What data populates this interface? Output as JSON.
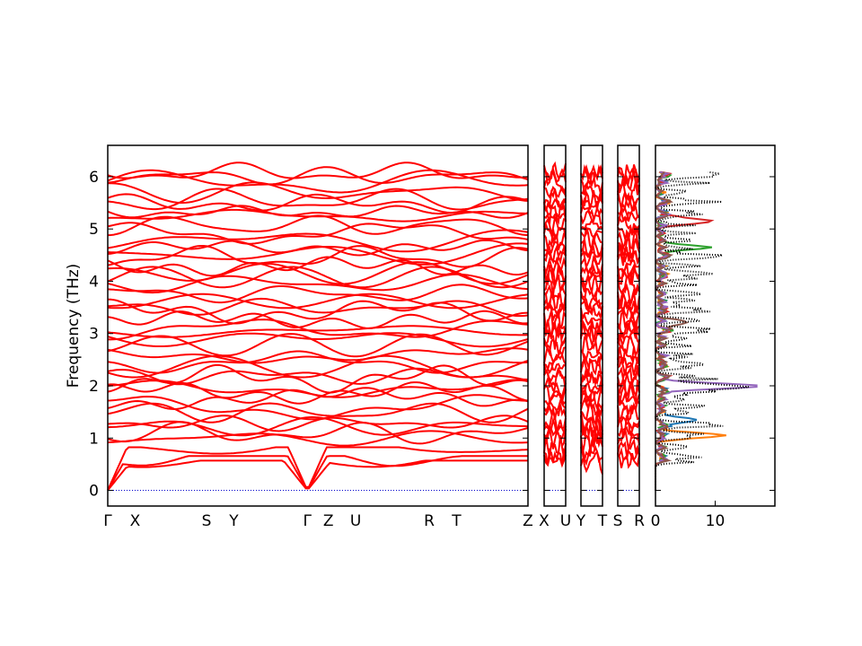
{
  "chart_data": {
    "type": "line",
    "ylabel": "Frequency (THz)",
    "ylim": [
      -0.3,
      6.6
    ],
    "yticks": [
      0,
      1,
      2,
      3,
      4,
      5,
      6
    ],
    "band_segments": [
      {
        "labels": [
          "Γ",
          "X",
          "S",
          "Y",
          "Γ",
          "Z",
          "U",
          "R",
          "T",
          "Z"
        ],
        "label_positions": [
          0.0,
          0.065,
          0.235,
          0.3,
          0.475,
          0.525,
          0.59,
          0.765,
          0.83,
          1.0
        ]
      },
      {
        "labels": [
          "X",
          "U"
        ],
        "label_positions": [
          0.0,
          1.0
        ]
      },
      {
        "labels": [
          "Y",
          "T"
        ],
        "label_positions": [
          0.0,
          1.0
        ]
      },
      {
        "labels": [
          "S",
          "R"
        ],
        "label_positions": [
          0.0,
          1.0
        ]
      }
    ],
    "dos": {
      "xlim": [
        0,
        20
      ],
      "xticks": [
        0,
        10
      ],
      "series": [
        {
          "color": "#1f77b4",
          "peak_freq": 1.35,
          "peak_value": 7.5
        },
        {
          "color": "#ff7f0e",
          "peak_freq": 1.05,
          "peak_value": 11.5
        },
        {
          "color": "#2ca02c",
          "peak_freq": 4.65,
          "peak_value": 8.5
        },
        {
          "color": "#d62728",
          "peak_freq": 5.15,
          "peak_value": 10.5
        },
        {
          "color": "#9467bd",
          "peak_freq": 2.0,
          "peak_value": 19.0
        },
        {
          "color": "#8c564b",
          "peak_freq": 3.2,
          "peak_value": 5.0
        },
        {
          "color": "#000000",
          "peak_freq": 2.0,
          "peak_value": 19.0
        }
      ]
    }
  }
}
